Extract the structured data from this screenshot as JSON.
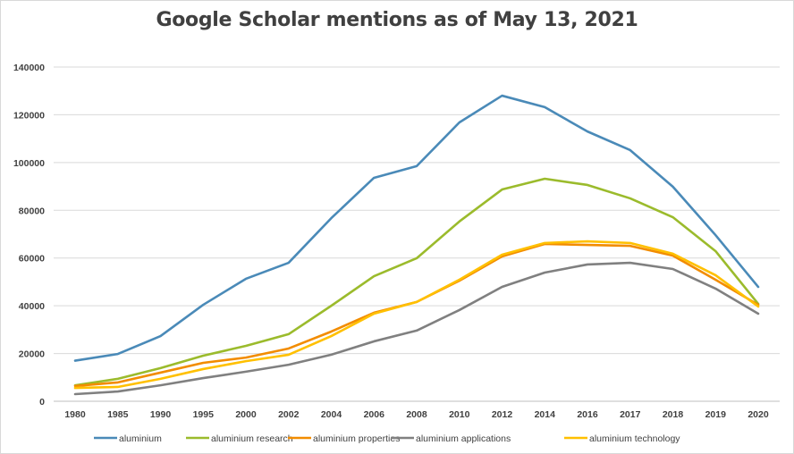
{
  "chart_data": {
    "type": "line",
    "title": "Google Scholar mentions as of May 13, 2021",
    "xlabel": "",
    "ylabel": "",
    "ylim": [
      0,
      140000
    ],
    "yticks": [
      "0",
      "20000",
      "40000",
      "60000",
      "80000",
      "100000",
      "120000",
      "140000"
    ],
    "grid": true,
    "legend_position": "bottom",
    "categories": [
      "1980",
      "1985",
      "1990",
      "1995",
      "2000",
      "2002",
      "2004",
      "2006",
      "2008",
      "2010",
      "2012",
      "2014",
      "2016",
      "2017",
      "2018",
      "2019",
      "2020"
    ],
    "series": [
      {
        "name": "aluminium",
        "color": "#4a8ab8",
        "values": [
          17000,
          19800,
          27300,
          40400,
          51300,
          58000,
          76700,
          93600,
          98500,
          116800,
          128000,
          123200,
          113000,
          105200,
          89900,
          69600,
          47900
        ]
      },
      {
        "name": "aluminium research",
        "color": "#9bbb2c",
        "values": [
          6700,
          9400,
          13900,
          19100,
          23200,
          28100,
          40000,
          52400,
          59900,
          75300,
          88700,
          93200,
          90600,
          85000,
          77100,
          62900,
          40800
        ]
      },
      {
        "name": "aluminium properties",
        "color": "#f28c00",
        "values": [
          6400,
          7900,
          12000,
          16100,
          18300,
          22100,
          29200,
          37100,
          41600,
          50500,
          60700,
          65900,
          65500,
          65100,
          61000,
          50900,
          40400
        ]
      },
      {
        "name": "aluminium applications",
        "color": "#808080",
        "values": [
          3000,
          4100,
          6700,
          9700,
          12400,
          15300,
          19500,
          25100,
          29600,
          38200,
          47900,
          53900,
          57300,
          58000,
          55400,
          47200,
          36700
        ]
      },
      {
        "name": "aluminium technology",
        "color": "#ffc000",
        "values": [
          5600,
          6000,
          9400,
          13500,
          16800,
          19500,
          27300,
          36700,
          41600,
          50900,
          61400,
          66300,
          67000,
          66300,
          61800,
          52800,
          39700
        ]
      }
    ]
  }
}
